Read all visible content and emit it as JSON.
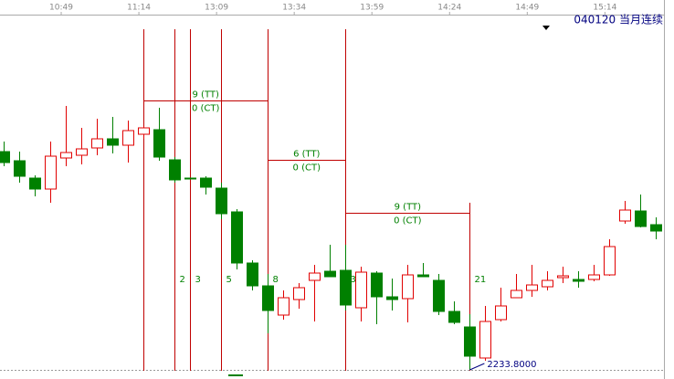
{
  "chart_data": {
    "type": "candlestick",
    "title": "040120 当月连续",
    "xlim": [
      -0.24,
      42.5
    ],
    "xticks": [
      {
        "value": 3.7,
        "label": "10:49"
      },
      {
        "value": 8.7,
        "label": "11:14"
      },
      {
        "value": 13.7,
        "label": "13:09"
      },
      {
        "value": 18.7,
        "label": "13:34"
      },
      {
        "value": 23.7,
        "label": "13:59"
      },
      {
        "value": 28.7,
        "label": "14:24"
      },
      {
        "value": 33.7,
        "label": "14:49"
      },
      {
        "value": 38.7,
        "label": "15:14"
      }
    ],
    "ylim": [
      2232.6,
      2311.6
    ],
    "up_color": "#e00000",
    "down_color": "#008000",
    "annotation_color": "#c00000",
    "open": [
      2281.6,
      2279.6,
      2275.8,
      2273.4,
      2280.2,
      2280.8,
      2282.4,
      2284.4,
      2283.0,
      2285.4,
      2286.4,
      2279.8,
      2275.8,
      2275.8,
      2273.6,
      2268.4,
      2257.2,
      2252.2,
      2245.8,
      2249.2,
      2253.4,
      2255.4,
      2255.6,
      2247.4,
      2255.0,
      2249.8,
      2249.4,
      2254.6,
      2253.4,
      2246.6,
      2243.2,
      2236.4,
      2244.8,
      2249.6,
      2251.2,
      2252.0,
      2254.0,
      2253.6,
      2253.6,
      2254.6,
      2266.4,
      2268.6,
      2265.6
    ],
    "high": [
      2283.8,
      2281.6,
      2276.4,
      2283.8,
      2291.6,
      2286.8,
      2288.8,
      2289.2,
      2288.4,
      2287.2,
      2291.2,
      2280.4,
      2275.8,
      2276.2,
      2274.8,
      2269.0,
      2257.8,
      2254.8,
      2251.2,
      2252.8,
      2256.8,
      2261.2,
      2261.2,
      2256.4,
      2255.4,
      2253.8,
      2256.8,
      2257.2,
      2254.8,
      2248.8,
      2246.0,
      2247.8,
      2251.8,
      2254.8,
      2256.8,
      2255.4,
      2256.4,
      2255.4,
      2256.8,
      2262.4,
      2270.8,
      2272.2,
      2267.2
    ],
    "low": [
      2278.4,
      2274.8,
      2271.8,
      2270.4,
      2278.4,
      2278.8,
      2280.8,
      2281.2,
      2279.2,
      2284.4,
      2279.6,
      2274.8,
      2275.6,
      2272.2,
      2266.8,
      2255.8,
      2251.2,
      2241.8,
      2244.8,
      2247.2,
      2244.4,
      2254.2,
      2246.8,
      2244.4,
      2243.8,
      2246.8,
      2244.2,
      2254.2,
      2245.8,
      2243.8,
      2233.8,
      2235.8,
      2244.4,
      2249.6,
      2249.8,
      2251.2,
      2252.8,
      2251.8,
      2253.2,
      2254.4,
      2265.8,
      2265.0,
      2262.4
    ],
    "close": [
      2279.2,
      2276.2,
      2273.4,
      2280.6,
      2281.4,
      2282.2,
      2284.4,
      2283.0,
      2286.2,
      2286.8,
      2280.4,
      2275.4,
      2275.6,
      2273.8,
      2268.0,
      2257.2,
      2252.2,
      2246.8,
      2249.6,
      2251.8,
      2255.0,
      2254.2,
      2248.0,
      2255.2,
      2249.8,
      2249.2,
      2254.6,
      2254.2,
      2246.6,
      2244.2,
      2236.8,
      2244.4,
      2247.8,
      2251.2,
      2252.4,
      2253.4,
      2254.4,
      2253.2,
      2254.6,
      2260.8,
      2268.8,
      2265.2,
      2264.2
    ],
    "markers": [
      {
        "index": 9
      },
      {
        "index": 11,
        "count": 2
      },
      {
        "index": 12,
        "count": 3
      },
      {
        "index": 14,
        "count": 5
      },
      {
        "index": 17,
        "count": 8
      },
      {
        "index": 22,
        "count": 3
      },
      {
        "index": 30,
        "count": 21
      }
    ],
    "ranges": [
      {
        "from": 9,
        "to": 17,
        "level": 2292.8,
        "tt": "9 (TT)",
        "ct": "0 (CT)"
      },
      {
        "from": 17,
        "to": 22,
        "level": 2279.8,
        "tt": "6 (TT)",
        "ct": "0 (CT)"
      },
      {
        "from": 22,
        "to": 30,
        "level": 2268.2,
        "tt": "9 (TT)",
        "ct": "0 (CT)"
      }
    ],
    "low_label": {
      "index": 30,
      "value": 2233.8,
      "label": "2233.8000"
    }
  }
}
